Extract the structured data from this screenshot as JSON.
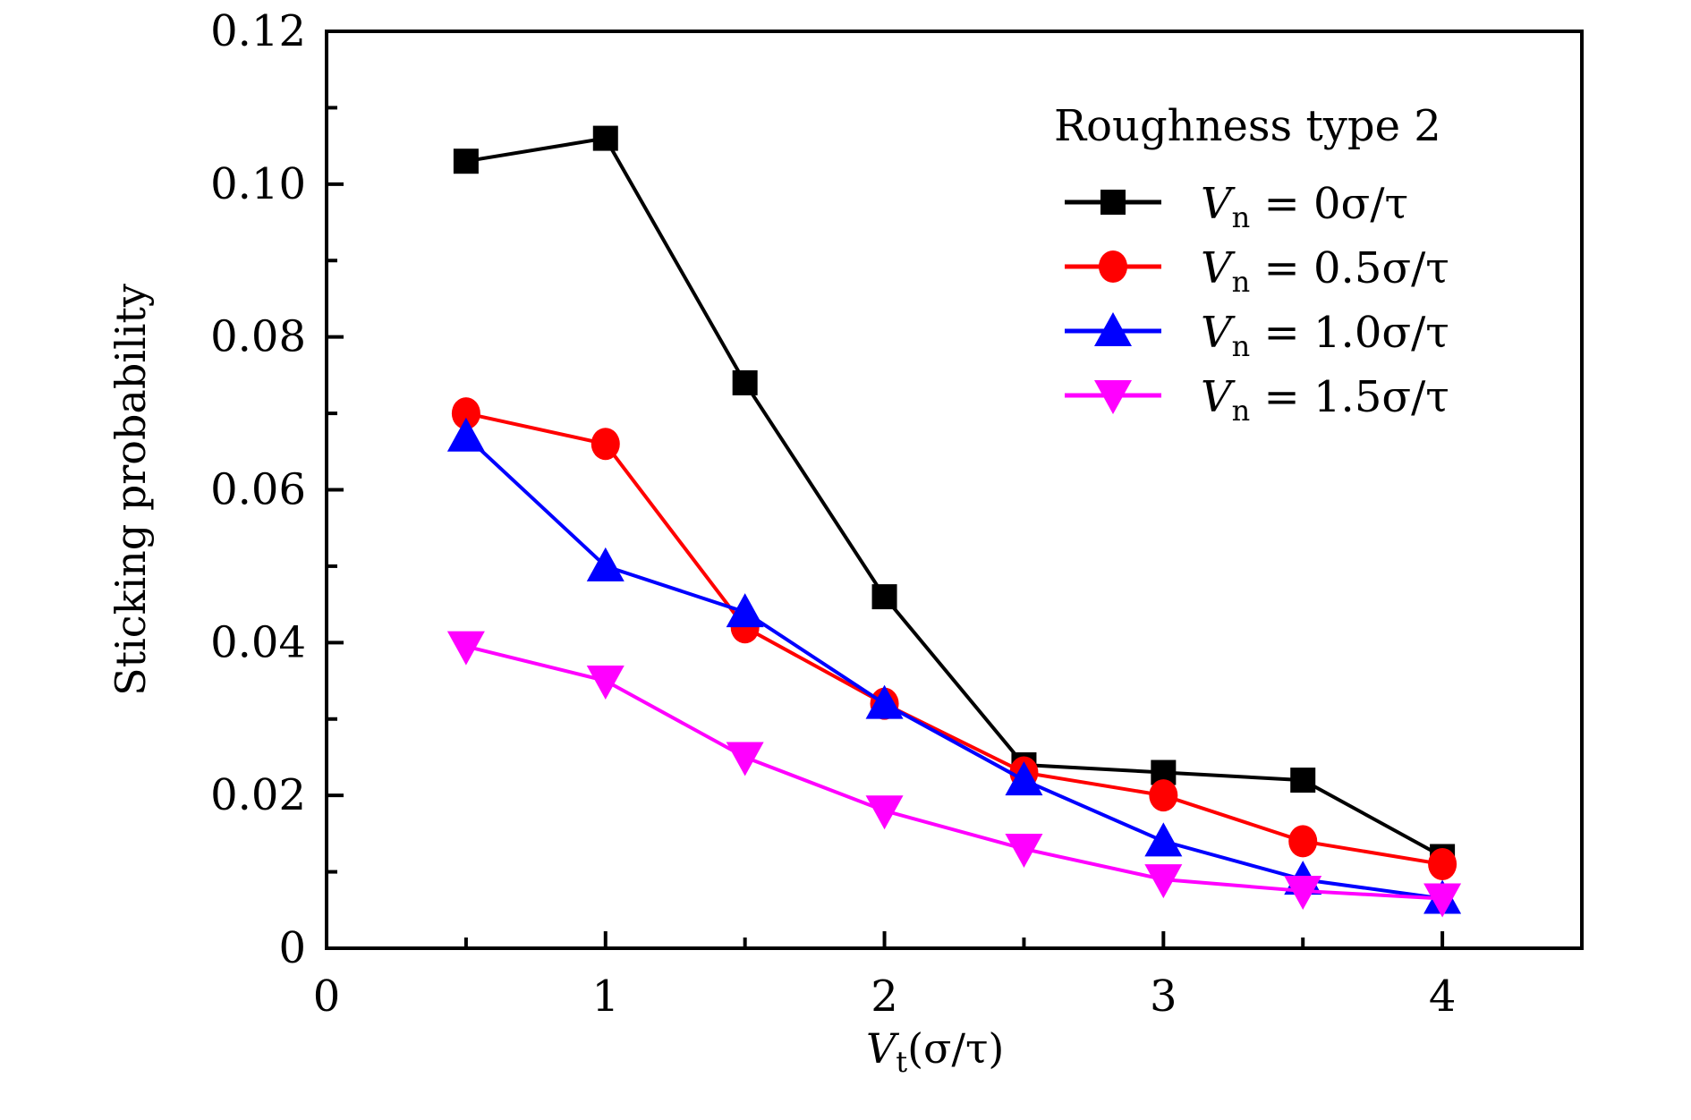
{
  "chart_data": {
    "type": "line",
    "title": "",
    "xlabel": "V_t(σ/τ)",
    "xlabel_parts": {
      "var": "V",
      "sub": "t",
      "rest": "(σ/τ)"
    },
    "ylabel": "Sticking probability",
    "xlim": [
      0,
      4.5
    ],
    "ylim": [
      0,
      0.12
    ],
    "xticks": [
      0,
      1,
      2,
      3,
      4
    ],
    "xtick_labels": [
      "0",
      "1",
      "2",
      "3",
      "4"
    ],
    "xminor": [
      0.5,
      1.5,
      2.5,
      3.5
    ],
    "yticks": [
      0,
      0.02,
      0.04,
      0.06,
      0.08,
      0.1,
      0.12
    ],
    "ytick_labels": [
      "0",
      "0.02",
      "0.04",
      "0.06",
      "0.08",
      "0.10",
      "0.12"
    ],
    "yminor": [
      0.01,
      0.03,
      0.05,
      0.07,
      0.09,
      0.11
    ],
    "grid": false,
    "legend": {
      "title": "Roughness type 2",
      "placement": "top-right"
    },
    "x": [
      0.5,
      1.0,
      1.5,
      2.0,
      2.5,
      3.0,
      3.5,
      4.0
    ],
    "series": [
      {
        "name": "V_n = 0σ/τ",
        "label_var": "V",
        "label_sub": "n",
        "label_rest": " = 0σ/τ",
        "color": "#000000",
        "marker": "square",
        "values": [
          0.103,
          0.106,
          0.074,
          0.046,
          0.024,
          0.023,
          0.022,
          0.012
        ]
      },
      {
        "name": "V_n = 0.5σ/τ",
        "label_var": "V",
        "label_sub": "n",
        "label_rest": " = 0.5σ/τ",
        "color": "#ff0000",
        "marker": "circle",
        "values": [
          0.07,
          0.066,
          0.042,
          0.032,
          0.023,
          0.02,
          0.014,
          0.011
        ]
      },
      {
        "name": "V_n = 1.0σ/τ",
        "label_var": "V",
        "label_sub": "n",
        "label_rest": " = 1.0σ/τ",
        "color": "#0000ff",
        "marker": "triangle-up",
        "values": [
          0.067,
          0.05,
          0.044,
          0.032,
          0.022,
          0.014,
          0.009,
          0.0065
        ]
      },
      {
        "name": "V_n = 1.5σ/τ",
        "label_var": "V",
        "label_sub": "n",
        "label_rest": " = 1.5σ/τ",
        "color": "#ff00ff",
        "marker": "triangle-down",
        "values": [
          0.0395,
          0.035,
          0.025,
          0.018,
          0.013,
          0.009,
          0.0075,
          0.0065
        ]
      }
    ]
  }
}
